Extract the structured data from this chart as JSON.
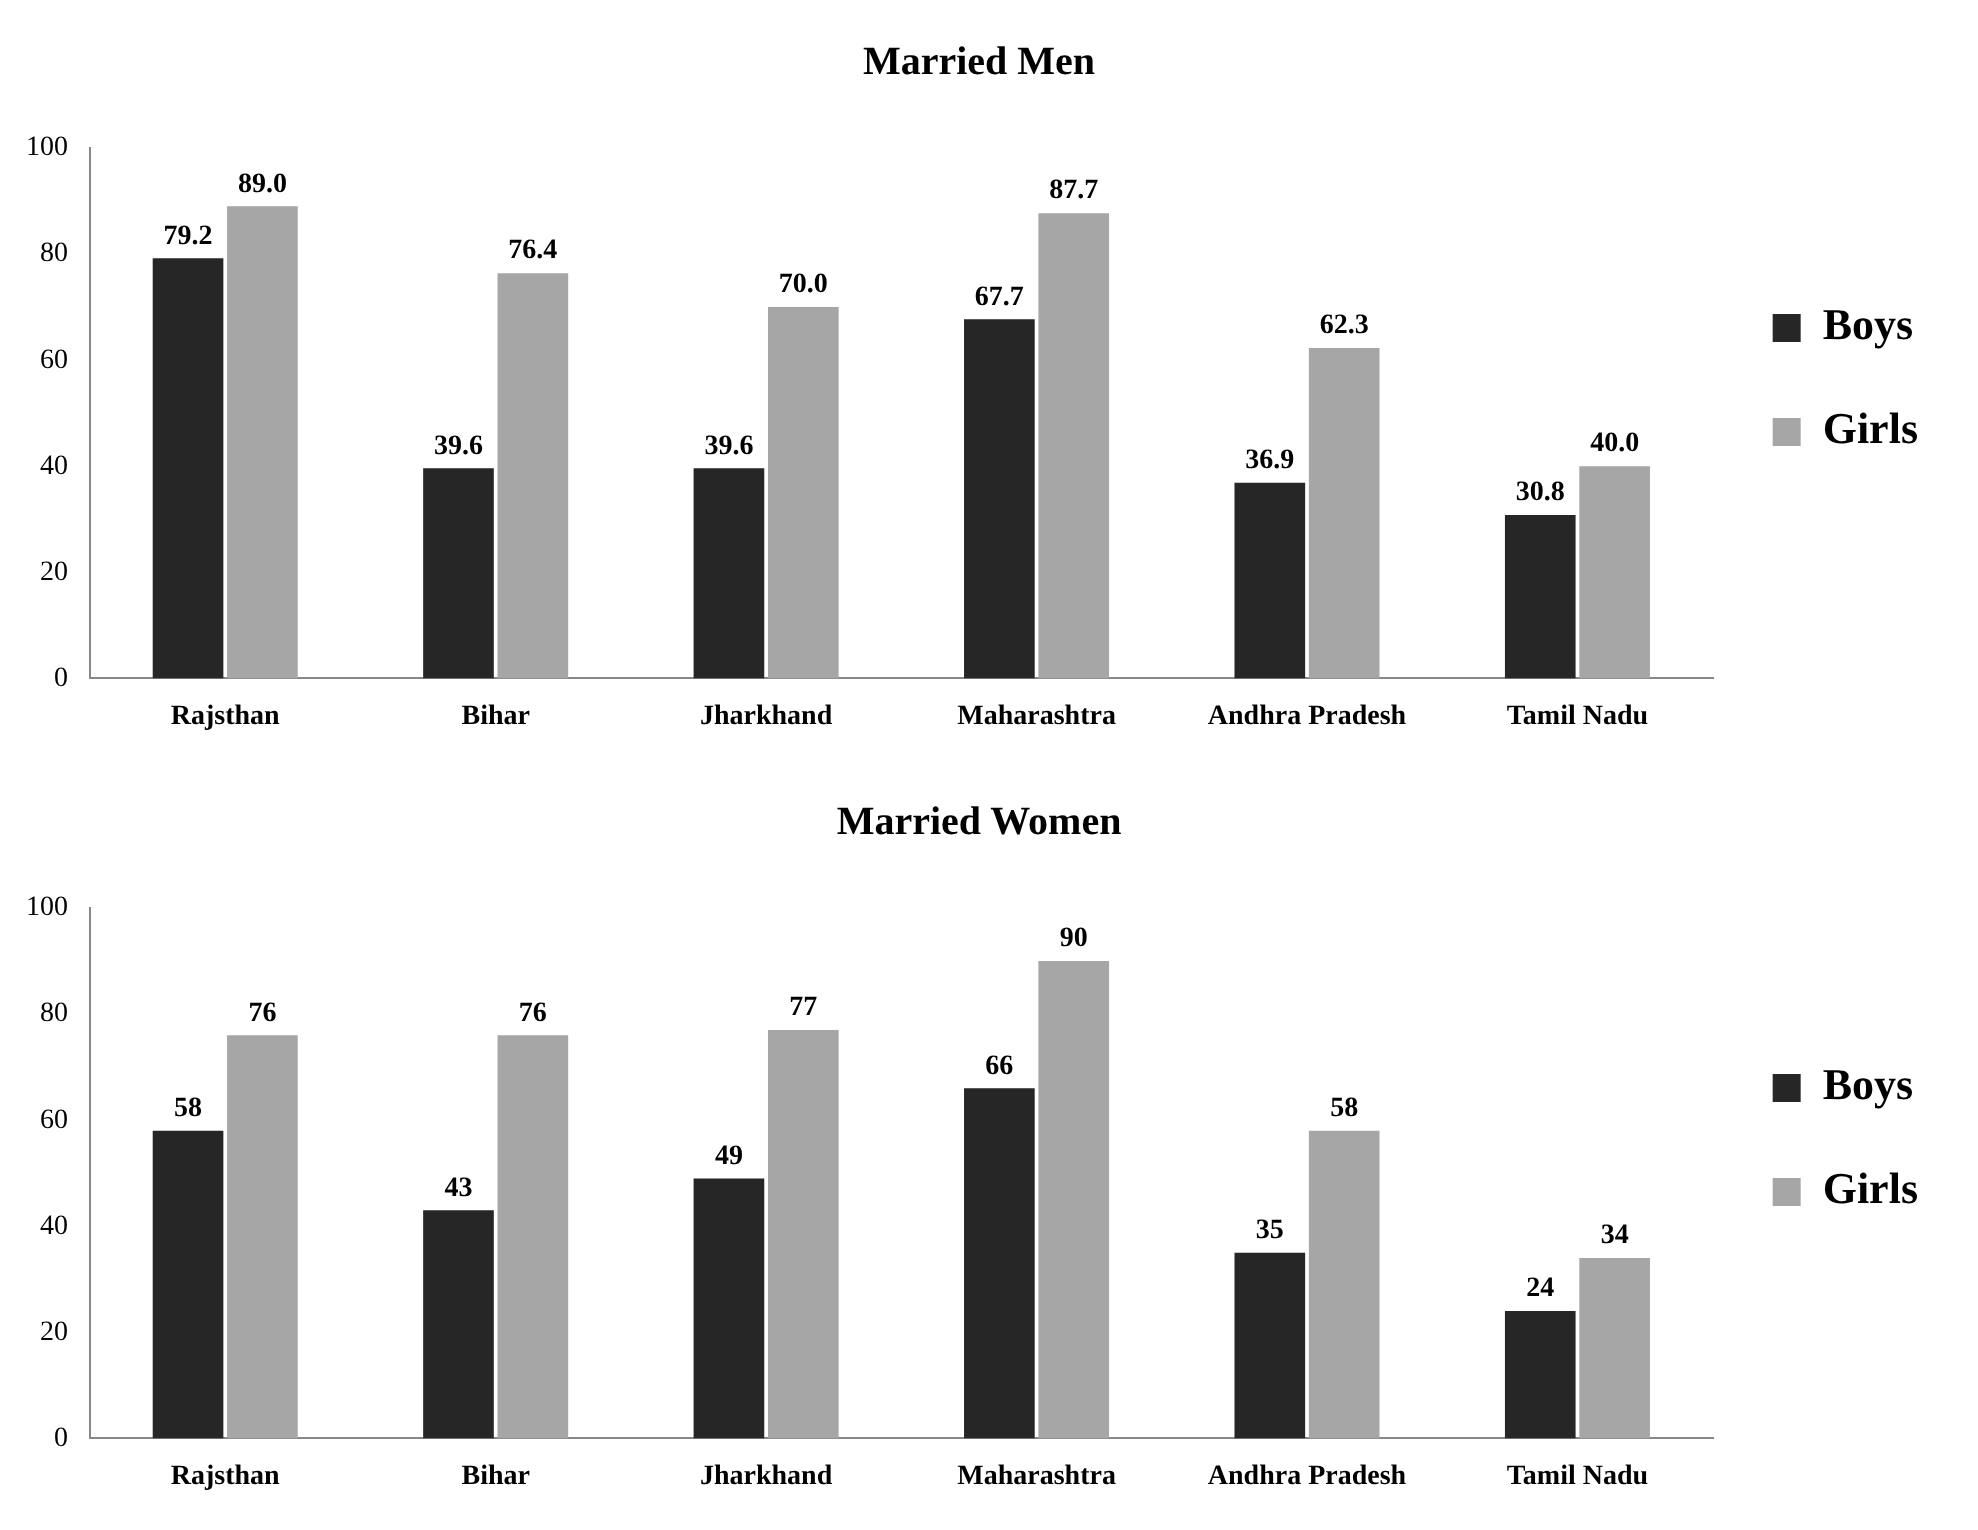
{
  "chart_data": [
    {
      "type": "bar",
      "title": "Married Men",
      "categories": [
        "Rajsthan",
        "Bihar",
        "Jharkhand",
        "Maharashtra",
        "Andhra Pradesh",
        "Tamil Nadu"
      ],
      "series": [
        {
          "name": "Boys",
          "color": "#262626",
          "values": [
            79.2,
            39.6,
            39.6,
            67.7,
            36.9,
            30.8
          ],
          "value_labels": [
            "79.2",
            "39.6",
            "39.6",
            "67.7",
            "36.9",
            "30.8"
          ]
        },
        {
          "name": "Girls",
          "color": "#a6a6a6",
          "values": [
            89.0,
            76.4,
            70.0,
            87.7,
            62.3,
            40.0
          ],
          "value_labels": [
            "89.0",
            "76.4",
            "70.0",
            "87.7",
            "62.3",
            "40.0"
          ]
        }
      ],
      "ylim": [
        0,
        100
      ],
      "yticks": [
        0,
        20,
        40,
        60,
        80,
        100
      ],
      "legend": "right"
    },
    {
      "type": "bar",
      "title": "Married Women",
      "categories": [
        "Rajsthan",
        "Bihar",
        "Jharkhand",
        "Maharashtra",
        "Andhra Pradesh",
        "Tamil Nadu"
      ],
      "series": [
        {
          "name": "Boys",
          "color": "#262626",
          "values": [
            58,
            43,
            49,
            66,
            35,
            24
          ]
        },
        {
          "name": "Girls",
          "color": "#a6a6a6",
          "values": [
            76,
            76,
            77,
            90,
            58,
            34
          ]
        }
      ],
      "ylim": [
        0,
        100
      ],
      "yticks": [
        0,
        20,
        40,
        60,
        80,
        100
      ],
      "legend": "right",
      "data_labels": true
    }
  ]
}
